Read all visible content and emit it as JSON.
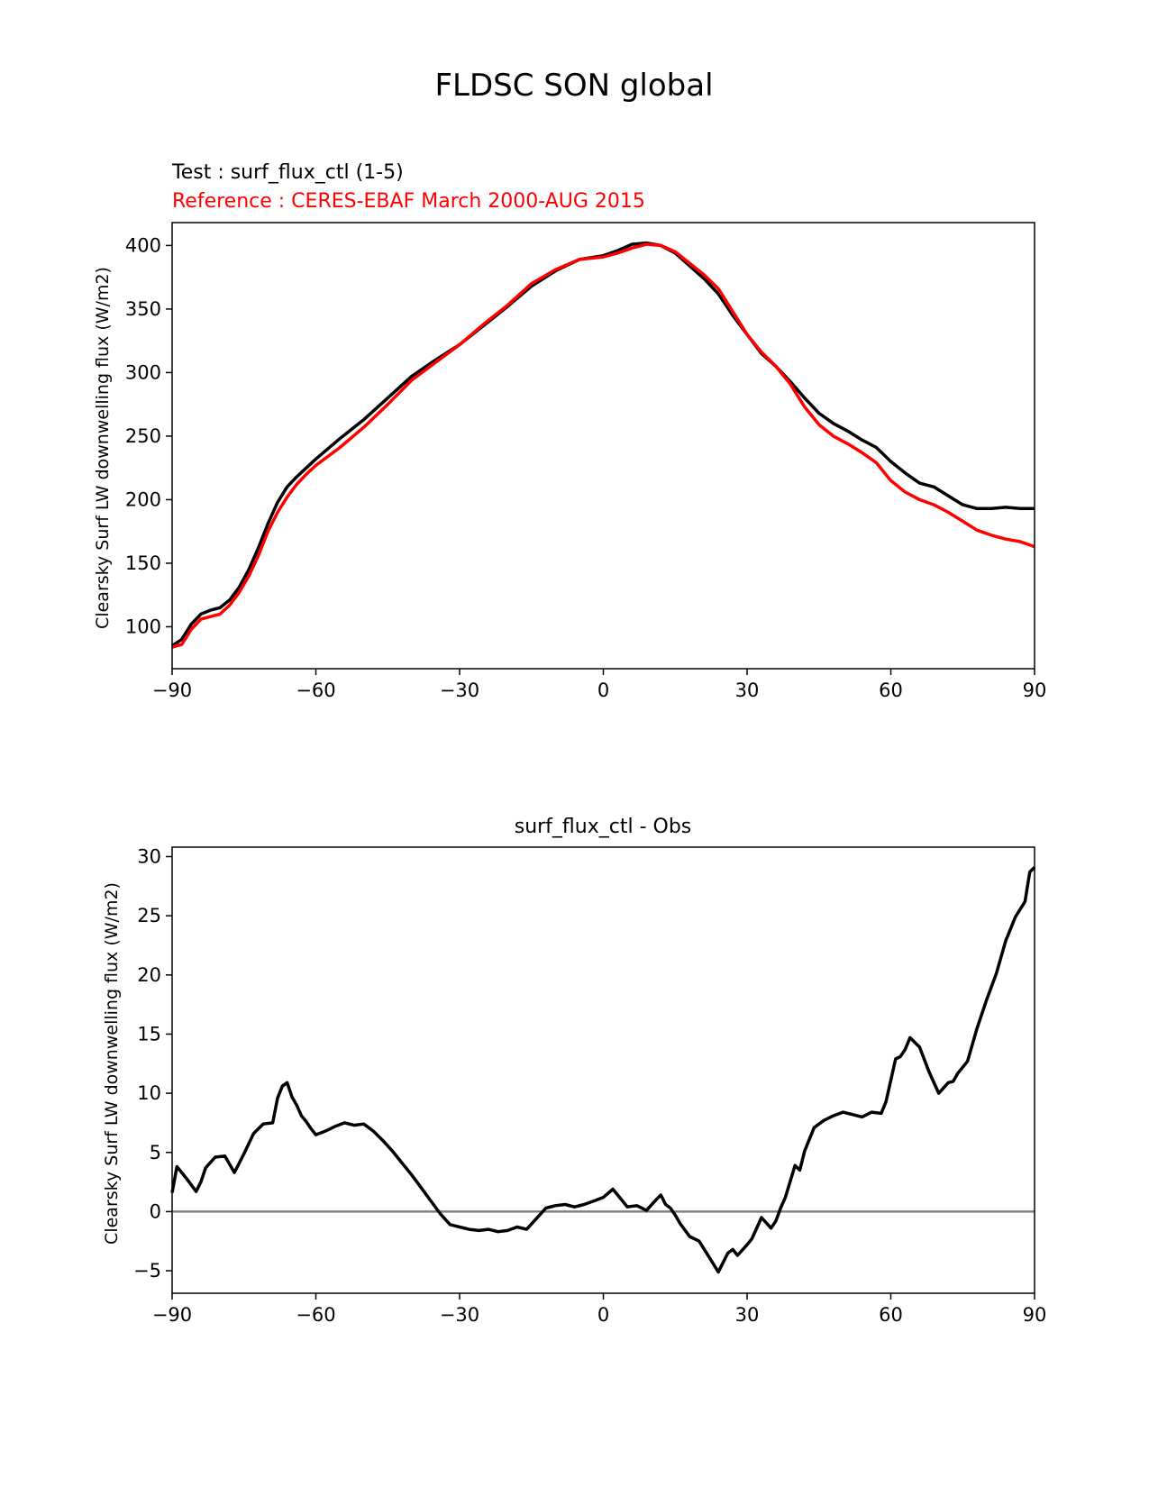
{
  "suptitle": "FLDSC SON global",
  "chart_data": [
    {
      "type": "line",
      "title": "",
      "test_label": "Test : surf_flux_ctl (1-5)",
      "ref_label": "Reference : CERES-EBAF March 2000-AUG 2015",
      "xlabel": "",
      "ylabel": "Clearsky Surf LW downwelling flux (W/m2)",
      "xlim": [
        -90,
        90
      ],
      "ylim": [
        67,
        418
      ],
      "xticks": [
        -90,
        -60,
        -30,
        0,
        30,
        60,
        90
      ],
      "xtick_labels": [
        "−90",
        "−60",
        "−30",
        "0",
        "30",
        "60",
        "90"
      ],
      "yticks": [
        100,
        150,
        200,
        250,
        300,
        350,
        400
      ],
      "ytick_labels": [
        "100",
        "150",
        "200",
        "250",
        "300",
        "350",
        "400"
      ],
      "grid": false,
      "colors": {
        "test": "#000000",
        "reference": "#ff0000"
      },
      "series": [
        {
          "name": "Test : surf_flux_ctl (1-5)",
          "color": "#000000",
          "x": [
            -90,
            -88,
            -86,
            -84,
            -82,
            -80,
            -78,
            -76,
            -74,
            -72,
            -70,
            -68,
            -66,
            -64,
            -62,
            -60,
            -55,
            -50,
            -45,
            -40,
            -35,
            -30,
            -25,
            -20,
            -15,
            -10,
            -5,
            0,
            3,
            6,
            9,
            12,
            15,
            18,
            21,
            24,
            27,
            30,
            33,
            36,
            39,
            42,
            45,
            48,
            51,
            54,
            57,
            60,
            63,
            66,
            69,
            72,
            75,
            78,
            81,
            84,
            87,
            90
          ],
          "y": [
            85,
            90,
            102,
            110,
            113,
            115,
            121,
            131,
            145,
            162,
            181,
            198,
            210,
            218,
            225,
            232,
            248,
            263,
            280,
            297,
            310,
            322,
            337,
            352,
            368,
            380,
            389,
            392,
            396,
            401,
            402,
            400,
            394,
            384,
            374,
            362,
            345,
            330,
            315,
            305,
            293,
            280,
            268,
            260,
            254,
            247,
            241,
            230,
            221,
            213,
            210,
            203,
            196,
            193,
            193,
            194,
            193,
            193
          ]
        },
        {
          "name": "Reference : CERES-EBAF March 2000-AUG 2015",
          "color": "#ff0000",
          "x": [
            -90,
            -88,
            -86,
            -84,
            -82,
            -80,
            -78,
            -76,
            -74,
            -72,
            -70,
            -68,
            -66,
            -64,
            -62,
            -60,
            -55,
            -50,
            -45,
            -40,
            -35,
            -30,
            -25,
            -20,
            -15,
            -10,
            -5,
            0,
            3,
            6,
            9,
            12,
            15,
            18,
            21,
            24,
            27,
            30,
            33,
            36,
            39,
            42,
            45,
            48,
            51,
            54,
            57,
            60,
            63,
            66,
            69,
            72,
            75,
            78,
            81,
            84,
            87,
            90
          ],
          "y": [
            84,
            86,
            98,
            106,
            108,
            110,
            117,
            127,
            140,
            156,
            175,
            190,
            202,
            212,
            220,
            227,
            241,
            257,
            275,
            294,
            308,
            322,
            338,
            353,
            370,
            381,
            389,
            391,
            394,
            398,
            401,
            400,
            395,
            386,
            377,
            366,
            348,
            330,
            316,
            305,
            291,
            273,
            259,
            250,
            244,
            237,
            229,
            215,
            206,
            200,
            196,
            190,
            183,
            176,
            172,
            169,
            167,
            163
          ]
        }
      ]
    },
    {
      "type": "line",
      "title": "surf_flux_ctl - Obs",
      "xlabel": "",
      "ylabel": "Clearsky Surf LW downwelling flux (W/m2)",
      "xlim": [
        -90,
        90
      ],
      "ylim": [
        -6.9,
        30.8
      ],
      "xticks": [
        -90,
        -60,
        -30,
        0,
        30,
        60,
        90
      ],
      "xtick_labels": [
        "−90",
        "−60",
        "−30",
        "0",
        "30",
        "60",
        "90"
      ],
      "yticks": [
        -5,
        0,
        5,
        10,
        15,
        20,
        25,
        30
      ],
      "ytick_labels": [
        "−5",
        "0",
        "5",
        "10",
        "15",
        "20",
        "25",
        "30"
      ],
      "grid": false,
      "zero_line_color": "#808080",
      "series": [
        {
          "color": "#000000",
          "x": [
            -90,
            -89,
            -87,
            -85,
            -84,
            -83,
            -81,
            -79,
            -77,
            -75,
            -73,
            -71,
            -69,
            -68,
            -67,
            -66,
            -65,
            -64,
            -63,
            -62,
            -61,
            -60,
            -58,
            -56,
            -54,
            -52,
            -50,
            -48,
            -46,
            -44,
            -42,
            -40,
            -38,
            -36,
            -34,
            -32,
            -30,
            -28,
            -26,
            -24,
            -22,
            -20,
            -18,
            -16,
            -14,
            -12,
            -10,
            -8,
            -6,
            -4,
            -2,
            0,
            2,
            4,
            5,
            7,
            9,
            11,
            12,
            13,
            14,
            15,
            16,
            18,
            20,
            22,
            24,
            26,
            27,
            28,
            30,
            31,
            33,
            35,
            36,
            37,
            38,
            40,
            41,
            42,
            44,
            46,
            48,
            50,
            52,
            54,
            56,
            58,
            59,
            60,
            61,
            62,
            63,
            64,
            65,
            66,
            68,
            70,
            72,
            73,
            74,
            76,
            78,
            80,
            82,
            84,
            86,
            88,
            89,
            90
          ],
          "y": [
            1.6,
            3.8,
            2.8,
            1.7,
            2.5,
            3.7,
            4.6,
            4.7,
            3.3,
            4.9,
            6.6,
            7.4,
            7.5,
            9.6,
            10.6,
            10.9,
            9.7,
            9.0,
            8.1,
            7.6,
            7.0,
            6.5,
            6.8,
            7.2,
            7.5,
            7.3,
            7.4,
            6.8,
            6.0,
            5.1,
            4.1,
            3.1,
            2.0,
            0.9,
            -0.2,
            -1.1,
            -1.3,
            -1.5,
            -1.6,
            -1.5,
            -1.7,
            -1.6,
            -1.3,
            -1.5,
            -0.6,
            0.3,
            0.5,
            0.6,
            0.4,
            0.6,
            0.9,
            1.2,
            1.9,
            0.9,
            0.4,
            0.5,
            0.1,
            1.0,
            1.4,
            0.6,
            0.3,
            -0.3,
            -1.0,
            -2.1,
            -2.5,
            -3.8,
            -5.1,
            -3.5,
            -3.2,
            -3.7,
            -2.8,
            -2.3,
            -0.5,
            -1.4,
            -0.8,
            0.3,
            1.2,
            3.9,
            3.5,
            5.1,
            7.1,
            7.7,
            8.1,
            8.4,
            8.2,
            8.0,
            8.4,
            8.3,
            9.3,
            11.1,
            12.9,
            13.1,
            13.7,
            14.7,
            14.3,
            13.9,
            11.8,
            10.0,
            10.9,
            11.0,
            11.7,
            12.7,
            15.5,
            17.9,
            20.1,
            22.9,
            24.9,
            26.2,
            28.7,
            29.1
          ]
        }
      ]
    }
  ]
}
